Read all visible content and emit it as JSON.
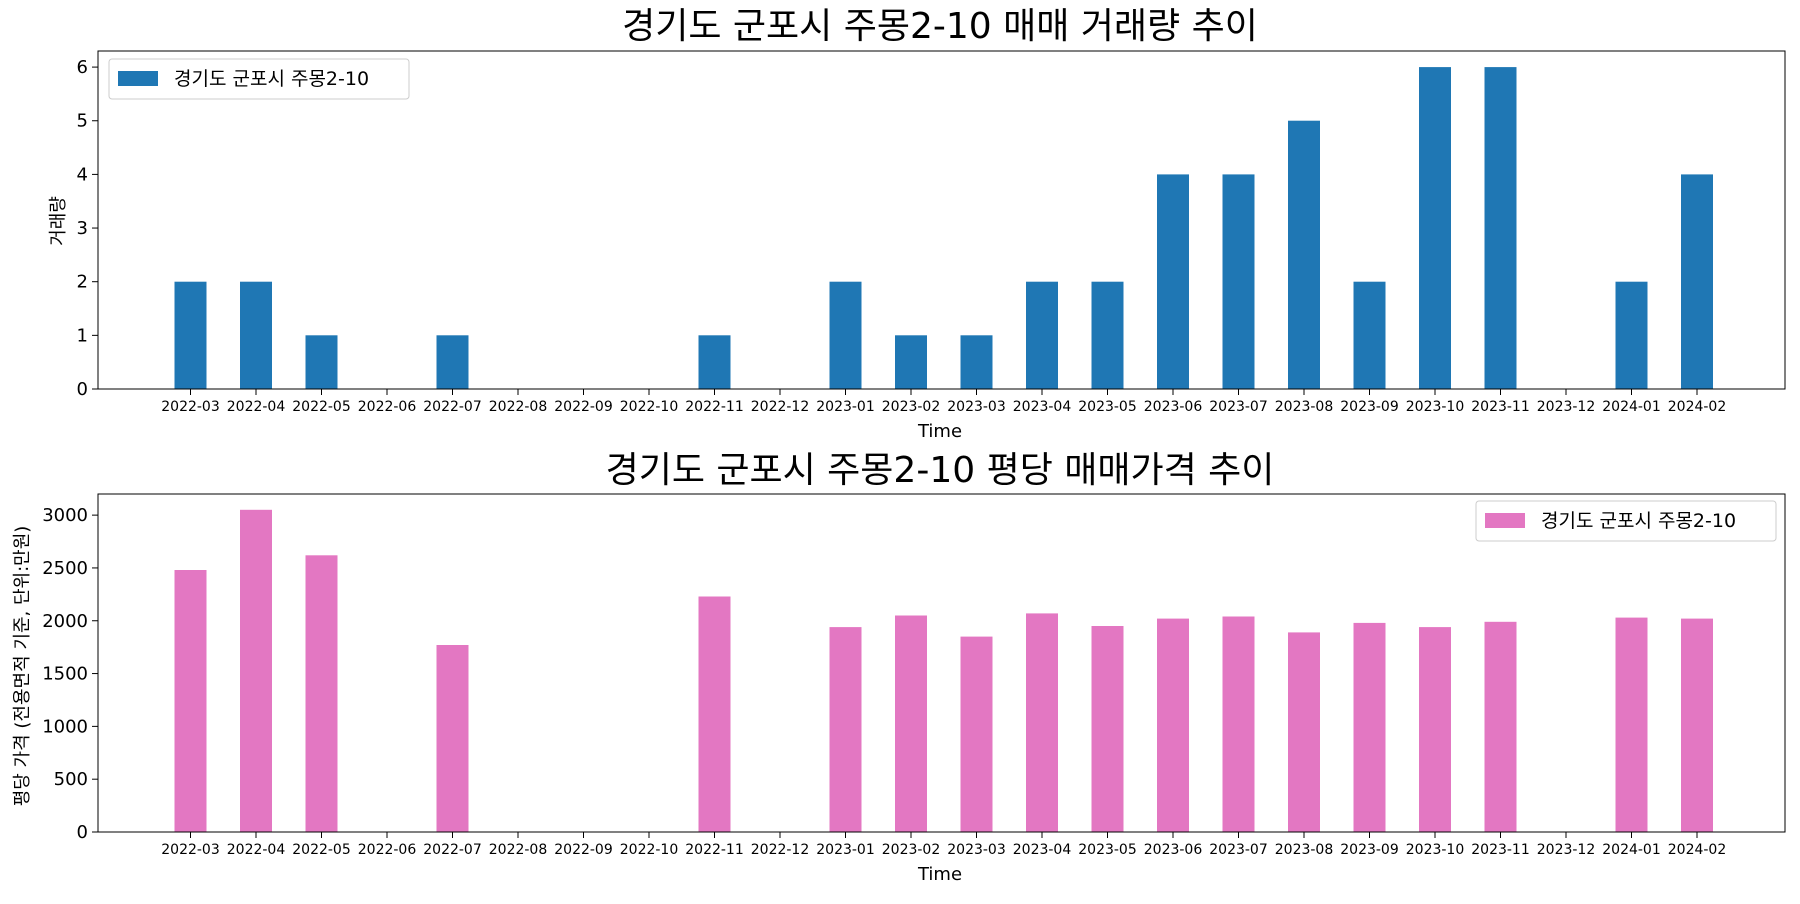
{
  "chart_data": [
    {
      "type": "bar",
      "title": "경기도 군포시 주몽2-10 매매 거래량 추이",
      "xlabel": "Time",
      "ylabel": "거래량",
      "ylim": [
        0,
        6.3
      ],
      "yticks": [
        0,
        1,
        2,
        3,
        4,
        5,
        6
      ],
      "legend_position": "top-left",
      "grid": false,
      "categories": [
        "2022-03",
        "2022-04",
        "2022-05",
        "2022-06",
        "2022-07",
        "2022-08",
        "2022-09",
        "2022-10",
        "2022-11",
        "2022-12",
        "2023-01",
        "2023-02",
        "2023-03",
        "2023-04",
        "2023-05",
        "2023-06",
        "2023-07",
        "2023-08",
        "2023-09",
        "2023-10",
        "2023-11",
        "2023-12",
        "2024-01",
        "2024-02"
      ],
      "series": [
        {
          "name": "경기도 군포시 주몽2-10",
          "color": "#1f77b4",
          "values": [
            2,
            2,
            1,
            null,
            1,
            null,
            null,
            null,
            1,
            null,
            2,
            1,
            1,
            2,
            2,
            4,
            4,
            5,
            2,
            6,
            6,
            null,
            2,
            4
          ]
        }
      ]
    },
    {
      "type": "bar",
      "title": "경기도 군포시 주몽2-10 평당 매매가격 추이",
      "xlabel": "Time",
      "ylabel": "평당 가격 (전용면적 기준, 단위:만원)",
      "ylim": [
        0,
        3200
      ],
      "yticks": [
        0,
        500,
        1000,
        1500,
        2000,
        2500,
        3000
      ],
      "legend_position": "top-right",
      "grid": false,
      "categories": [
        "2022-03",
        "2022-04",
        "2022-05",
        "2022-06",
        "2022-07",
        "2022-08",
        "2022-09",
        "2022-10",
        "2022-11",
        "2022-12",
        "2023-01",
        "2023-02",
        "2023-03",
        "2023-04",
        "2023-05",
        "2023-06",
        "2023-07",
        "2023-08",
        "2023-09",
        "2023-10",
        "2023-11",
        "2023-12",
        "2024-01",
        "2024-02"
      ],
      "series": [
        {
          "name": "경기도 군포시 주몽2-10",
          "color": "#e377c2",
          "values": [
            2480,
            3050,
            2620,
            null,
            1770,
            null,
            null,
            null,
            2230,
            null,
            1940,
            2050,
            1850,
            2070,
            1950,
            2020,
            2040,
            1890,
            1980,
            1940,
            1990,
            null,
            2030,
            2020
          ]
        }
      ]
    }
  ]
}
